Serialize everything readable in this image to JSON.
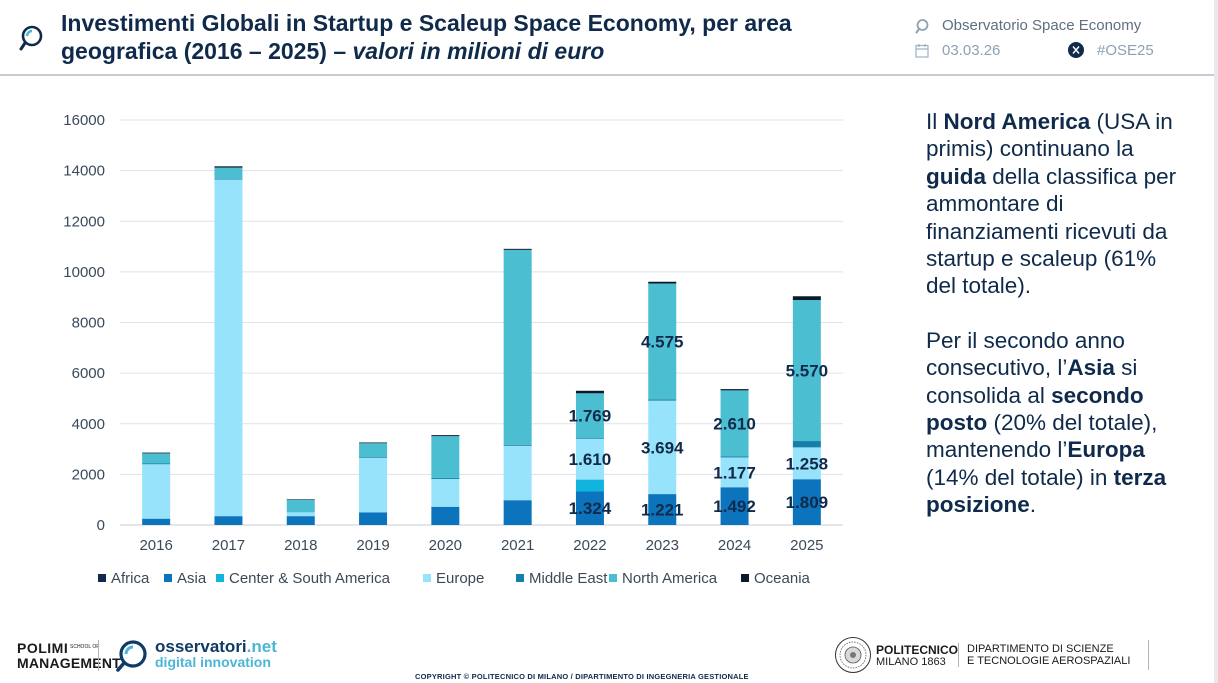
{
  "header": {
    "title_main": "Investimenti Globali in Startup e Scaleup Space Economy, per area geografica (2016 – 2025) – ",
    "title_italic": "valori in milioni di euro",
    "organization": "Observatorio Space Economy",
    "date": "03.03.26",
    "hashtag": "#OSE25",
    "icons": [
      "magnifier-logo-icon",
      "magnifier-small-icon",
      "calendar-icon",
      "x-social-icon"
    ]
  },
  "chart_data": {
    "type": "bar",
    "stacked": true,
    "categories": [
      "2016",
      "2017",
      "2018",
      "2019",
      "2020",
      "2021",
      "2022",
      "2023",
      "2024",
      "2025"
    ],
    "ylim": [
      0,
      16000
    ],
    "yticks": [
      "0",
      "2000",
      "4000",
      "6000",
      "8000",
      "10000",
      "12000",
      "14000",
      "16000"
    ],
    "xlabel": "",
    "ylabel": "",
    "grid": true,
    "legend_position": "bottom",
    "series": [
      {
        "name": "Africa",
        "color": "#0f2a4a",
        "values": [
          0,
          0,
          0,
          0,
          0,
          0,
          0,
          0,
          0,
          0
        ]
      },
      {
        "name": "Asia",
        "color": "#0c74bd",
        "values": [
          250,
          350,
          350,
          500,
          720,
          980,
          1324,
          1221,
          1492,
          1809
        ]
      },
      {
        "name": "Center & South America",
        "color": "#10b4dd",
        "values": [
          0,
          0,
          0,
          0,
          0,
          0,
          470,
          0,
          0,
          0
        ]
      },
      {
        "name": "Europe",
        "color": "#97e3fb",
        "values": [
          2150,
          13300,
          150,
          2150,
          1100,
          2150,
          1610,
          3694,
          1177,
          1258
        ]
      },
      {
        "name": "Middle East",
        "color": "#147fa8",
        "values": [
          30,
          20,
          0,
          30,
          40,
          40,
          30,
          50,
          40,
          250
        ]
      },
      {
        "name": "North America",
        "color": "#4bbed1",
        "values": [
          400,
          450,
          500,
          550,
          1650,
          7700,
          1769,
          4575,
          2610,
          5570
        ]
      },
      {
        "name": "Oceania",
        "color": "#0b1a2b",
        "values": [
          30,
          50,
          20,
          30,
          40,
          40,
          100,
          70,
          50,
          150
        ]
      }
    ],
    "data_labels": [
      {
        "category": "2022",
        "series": "Asia",
        "text": "1.324"
      },
      {
        "category": "2022",
        "series": "Europe",
        "text": "1.610"
      },
      {
        "category": "2022",
        "series": "North America",
        "text": "1.769"
      },
      {
        "category": "2023",
        "series": "Asia",
        "text": "1.221"
      },
      {
        "category": "2023",
        "series": "Europe",
        "text": "3.694"
      },
      {
        "category": "2023",
        "series": "North America",
        "text": "4.575"
      },
      {
        "category": "2024",
        "series": "Asia",
        "text": "1.492"
      },
      {
        "category": "2024",
        "series": "Europe",
        "text": "1.177"
      },
      {
        "category": "2024",
        "series": "North America",
        "text": "2.610"
      },
      {
        "category": "2025",
        "series": "Asia",
        "text": "1.809"
      },
      {
        "category": "2025",
        "series": "Europe",
        "text": "1.258"
      },
      {
        "category": "2025",
        "series": "North America",
        "text": "5.570"
      }
    ]
  },
  "side_text": {
    "p1": [
      {
        "t": "Il ",
        "b": false
      },
      {
        "t": "Nord America",
        "b": true
      },
      {
        "t": " (USA in primis) continuano la ",
        "b": false
      },
      {
        "t": "guida",
        "b": true
      },
      {
        "t": " della classifica per ammontare di finanziamenti ricevuti da startup e scaleup (61% del totale).",
        "b": false
      }
    ],
    "p2": [
      {
        "t": "Per il secondo anno consecutivo, l’",
        "b": false
      },
      {
        "t": "Asia",
        "b": true
      },
      {
        "t": " si consolida al ",
        "b": false
      },
      {
        "t": "secondo posto",
        "b": true
      },
      {
        "t": " (20% del totale), mantenendo l’",
        "b": false
      },
      {
        "t": "Europa",
        "b": true
      },
      {
        "t": " (14% del totale) in ",
        "b": false
      },
      {
        "t": "terza posizione",
        "b": true
      },
      {
        "t": ".",
        "b": false
      }
    ]
  },
  "footer": {
    "polimi_line1": "POLIMI",
    "polimi_line2": "MANAGEMENT",
    "polimi_school": "SCHOOL OF",
    "osservatori_word": "osservatori",
    "osservatori_suffix": ".net",
    "osservatori_line2": "digital innovation",
    "copyright": "COPYRIGHT © POLITECNICO DI MILANO / DIPARTIMENTO DI INGEGNERIA GESTIONALE",
    "politecnico_line1": "POLITECNICO",
    "politecnico_line2": "MILANO 1863",
    "dipartimento_line1": "DIPARTIMENTO DI SCIENZE",
    "dipartimento_line2": "E TECNOLOGIE AEROSPAZIALI",
    "icons": [
      "polimi-seal-icon",
      "osservatori-magnifier-icon"
    ]
  }
}
